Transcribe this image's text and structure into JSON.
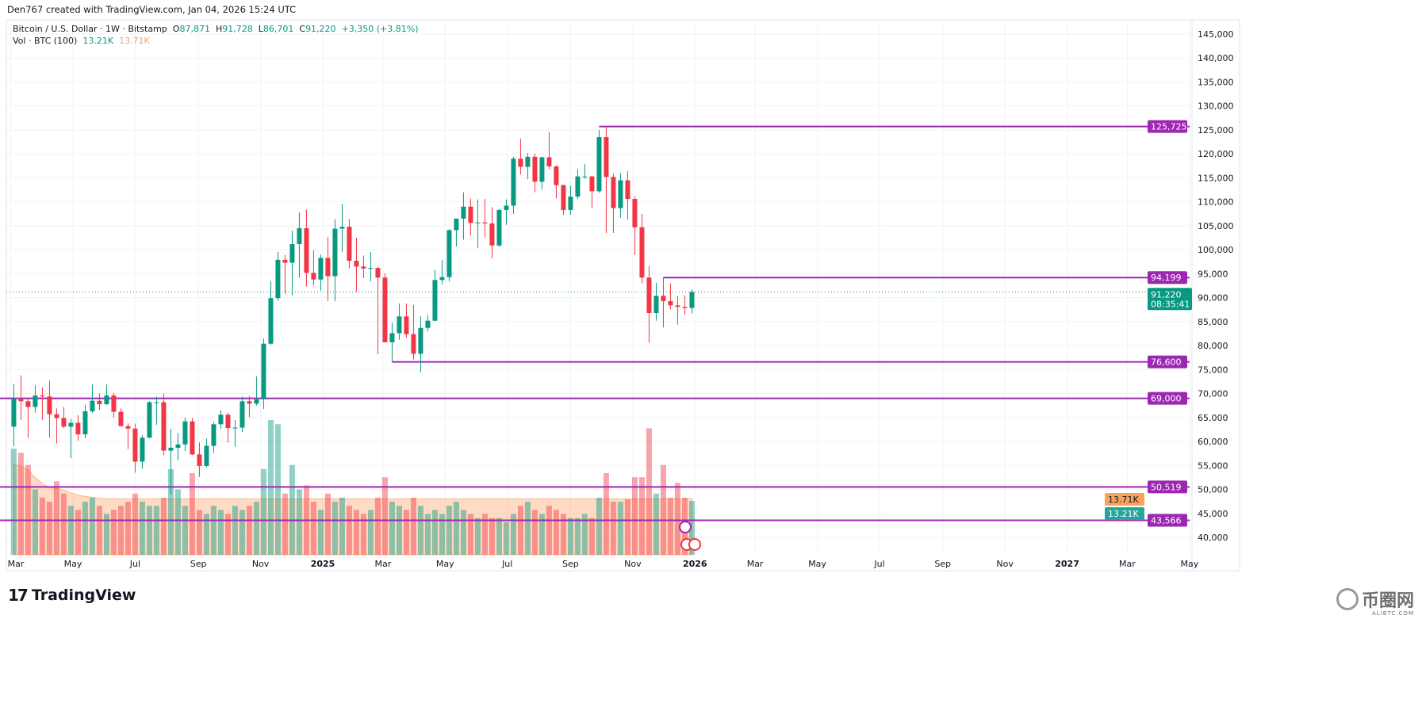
{
  "credit": "Den767 created with TradingView.com, Jan 04, 2026 15:24 UTC",
  "legend": {
    "symbol": "Bitcoin / U.S. Dollar · 1W · Bitstamp",
    "o_label": "O",
    "o": "87,871",
    "h_label": "H",
    "h": "91,728",
    "l_label": "L",
    "l": "86,701",
    "c_label": "C",
    "c": "91,220",
    "change": "+3,350 (+3.81%)",
    "vol_label": "Vol · BTC (100)",
    "vol": "13.21K",
    "vol_ma": "13.71K"
  },
  "colors": {
    "up": "#089981",
    "down": "#f23645",
    "level": "#9c27b0",
    "vol_ma": "#f7a35c",
    "grid": "#f0f3fa"
  },
  "footer": {
    "brand": "TradingView",
    "watermark": "币圈网",
    "watermark_sub": "ALIBTC.COM"
  },
  "chart_data": {
    "type": "candlestick",
    "title": "Bitcoin / U.S. Dollar · 1W · Bitstamp",
    "ylim": [
      38000,
      148000
    ],
    "y_ticks": [
      "40,000",
      "45,000",
      "50,000",
      "55,000",
      "60,000",
      "65,000",
      "70,000",
      "75,000",
      "80,000",
      "85,000",
      "90,000",
      "95,000",
      "100,000",
      "105,000",
      "110,000",
      "115,000",
      "120,000",
      "125,000",
      "130,000",
      "135,000",
      "140,000",
      "145,000"
    ],
    "x_ticks": [
      {
        "label": "Mar",
        "date": "2024-03-01"
      },
      {
        "label": "May",
        "date": "2024-05-01"
      },
      {
        "label": "Jul",
        "date": "2024-07-01"
      },
      {
        "label": "Sep",
        "date": "2024-09-01"
      },
      {
        "label": "Nov",
        "date": "2024-11-01"
      },
      {
        "label": "2025",
        "date": "2025-01-01",
        "bold": true
      },
      {
        "label": "Mar",
        "date": "2025-03-01"
      },
      {
        "label": "May",
        "date": "2025-05-01"
      },
      {
        "label": "Jul",
        "date": "2025-07-01"
      },
      {
        "label": "Sep",
        "date": "2025-09-01"
      },
      {
        "label": "Nov",
        "date": "2025-11-01"
      },
      {
        "label": "2026",
        "date": "2026-01-01",
        "bold": true
      },
      {
        "label": "Mar",
        "date": "2026-03-01"
      },
      {
        "label": "May",
        "date": "2026-05-01"
      },
      {
        "label": "Jul",
        "date": "2026-07-01"
      },
      {
        "label": "Sep",
        "date": "2026-09-01"
      },
      {
        "label": "Nov",
        "date": "2026-11-01"
      },
      {
        "label": "2027",
        "date": "2027-01-01",
        "bold": true
      },
      {
        "label": "Mar",
        "date": "2027-03-01"
      },
      {
        "label": "May",
        "date": "2027-05-01"
      }
    ],
    "levels": [
      {
        "label": "125,725",
        "price": 125725,
        "from": "2025-09-29"
      },
      {
        "label": "94,199",
        "price": 94199,
        "from": "2025-12-01"
      },
      {
        "label": "76,600",
        "price": 76600,
        "from": "2025-03-10"
      },
      {
        "label": "69,000",
        "price": 69000,
        "from": null
      },
      {
        "label": "50,519",
        "price": 50519,
        "from": null
      },
      {
        "label": "43,566",
        "price": 43566,
        "from": null
      }
    ],
    "last_price": {
      "label": "91,220",
      "price": 91220,
      "countdown": "08:35:41"
    },
    "volume_labels": {
      "ma": "13.71K",
      "last": "13.21K"
    },
    "columns": [
      "date",
      "open",
      "high",
      "low",
      "close",
      "volume_k"
    ],
    "candles": [
      [
        "2024-03-04",
        63100,
        72000,
        59000,
        69000,
        26
      ],
      [
        "2024-03-11",
        69000,
        73800,
        64500,
        68400,
        25
      ],
      [
        "2024-03-18",
        68400,
        68900,
        60800,
        67200,
        22
      ],
      [
        "2024-03-25",
        67200,
        71700,
        66000,
        69600,
        16
      ],
      [
        "2024-04-01",
        69600,
        71300,
        64500,
        69400,
        14
      ],
      [
        "2024-04-08",
        69400,
        72700,
        60800,
        65700,
        13
      ],
      [
        "2024-04-15",
        65700,
        66900,
        59600,
        64900,
        18
      ],
      [
        "2024-04-22",
        64900,
        67200,
        62800,
        63100,
        15
      ],
      [
        "2024-04-29",
        63100,
        64700,
        56500,
        63900,
        12
      ],
      [
        "2024-05-06",
        63900,
        65500,
        60200,
        61500,
        11
      ],
      [
        "2024-05-13",
        61500,
        67700,
        60700,
        66300,
        13
      ],
      [
        "2024-05-20",
        66300,
        71900,
        66000,
        68500,
        14
      ],
      [
        "2024-05-27",
        68500,
        70000,
        66600,
        67800,
        12
      ],
      [
        "2024-06-03",
        67800,
        71900,
        67600,
        69600,
        10
      ],
      [
        "2024-06-10",
        69600,
        70100,
        65000,
        66200,
        11
      ],
      [
        "2024-06-17",
        66200,
        66900,
        63400,
        63200,
        12
      ],
      [
        "2024-06-24",
        63200,
        63800,
        58400,
        62700,
        13
      ],
      [
        "2024-07-01",
        62700,
        63700,
        53500,
        55800,
        15
      ],
      [
        "2024-07-08",
        55800,
        61300,
        54300,
        60800,
        13
      ],
      [
        "2024-07-15",
        60800,
        68400,
        60700,
        68200,
        12
      ],
      [
        "2024-07-22",
        68200,
        69400,
        63500,
        68200,
        12
      ],
      [
        "2024-07-29",
        68200,
        70000,
        57100,
        58100,
        14
      ],
      [
        "2024-08-05",
        58100,
        62700,
        49000,
        58700,
        21
      ],
      [
        "2024-08-12",
        58700,
        61800,
        56100,
        59400,
        16
      ],
      [
        "2024-08-19",
        59400,
        65000,
        58000,
        64200,
        12
      ],
      [
        "2024-08-26",
        64200,
        64900,
        57200,
        57300,
        20
      ],
      [
        "2024-09-02",
        57300,
        59800,
        52600,
        54900,
        11
      ],
      [
        "2024-09-09",
        54900,
        60600,
        54600,
        59100,
        10
      ],
      [
        "2024-09-16",
        59100,
        64100,
        57600,
        63600,
        12
      ],
      [
        "2024-09-23",
        63600,
        66500,
        62700,
        65600,
        11
      ],
      [
        "2024-09-30",
        65600,
        66000,
        59800,
        62800,
        10
      ],
      [
        "2024-10-07",
        62800,
        64500,
        58900,
        62900,
        12
      ],
      [
        "2024-10-14",
        62900,
        69400,
        62000,
        68400,
        11
      ],
      [
        "2024-10-21",
        68400,
        69500,
        65100,
        67900,
        12
      ],
      [
        "2024-10-28",
        67900,
        73600,
        67500,
        68800,
        13
      ],
      [
        "2024-11-04",
        68800,
        81500,
        66800,
        80400,
        21
      ],
      [
        "2024-11-11",
        80400,
        93500,
        80200,
        89900,
        33
      ],
      [
        "2024-11-18",
        89900,
        99600,
        89400,
        97900,
        32
      ],
      [
        "2024-11-25",
        97900,
        98900,
        90800,
        97300,
        15
      ],
      [
        "2024-12-02",
        97300,
        104000,
        90500,
        101200,
        22
      ],
      [
        "2024-12-09",
        101200,
        107800,
        94200,
        104500,
        16
      ],
      [
        "2024-12-16",
        104500,
        108400,
        92300,
        95200,
        17
      ],
      [
        "2024-12-23",
        95200,
        99900,
        92500,
        93800,
        13
      ],
      [
        "2024-12-30",
        93800,
        99000,
        91500,
        98300,
        11
      ],
      [
        "2025-01-06",
        98300,
        102700,
        89300,
        94500,
        15
      ],
      [
        "2025-01-13",
        94500,
        106400,
        89300,
        104400,
        13
      ],
      [
        "2025-01-20",
        104400,
        109600,
        99500,
        104800,
        14
      ],
      [
        "2025-01-27",
        104800,
        106400,
        96100,
        97700,
        12
      ],
      [
        "2025-02-03",
        97700,
        102500,
        91200,
        96500,
        11
      ],
      [
        "2025-02-10",
        96500,
        98800,
        94100,
        96100,
        10
      ],
      [
        "2025-02-17",
        96100,
        99500,
        93400,
        96200,
        11
      ],
      [
        "2025-02-24",
        96200,
        96500,
        78200,
        94200,
        14
      ],
      [
        "2025-03-03",
        94200,
        95100,
        80900,
        80700,
        19
      ],
      [
        "2025-03-10",
        80700,
        84800,
        76600,
        82600,
        13
      ],
      [
        "2025-03-17",
        82600,
        88800,
        81200,
        86100,
        12
      ],
      [
        "2025-03-24",
        86100,
        88800,
        81600,
        82400,
        11
      ],
      [
        "2025-03-31",
        82400,
        88500,
        77100,
        78300,
        14
      ],
      [
        "2025-04-07",
        78300,
        86100,
        74400,
        83700,
        12
      ],
      [
        "2025-04-14",
        83700,
        86400,
        83000,
        85200,
        10
      ],
      [
        "2025-04-21",
        85200,
        95800,
        85100,
        93700,
        11
      ],
      [
        "2025-04-28",
        93700,
        97900,
        92800,
        94300,
        10
      ],
      [
        "2025-05-05",
        94300,
        104300,
        93400,
        104100,
        12
      ],
      [
        "2025-05-12",
        104100,
        105800,
        100700,
        106500,
        13
      ],
      [
        "2025-05-19",
        106500,
        112000,
        102100,
        109000,
        11
      ],
      [
        "2025-05-26",
        109000,
        110700,
        103000,
        105600,
        10
      ],
      [
        "2025-06-02",
        105600,
        110500,
        100400,
        105700,
        9
      ],
      [
        "2025-06-09",
        105700,
        110600,
        102600,
        105500,
        10
      ],
      [
        "2025-06-16",
        105500,
        108900,
        98200,
        100900,
        9
      ],
      [
        "2025-06-23",
        100900,
        108500,
        100600,
        108300,
        9
      ],
      [
        "2025-06-30",
        108300,
        110500,
        105200,
        109200,
        8
      ],
      [
        "2025-07-07",
        109200,
        119400,
        107500,
        119000,
        10
      ],
      [
        "2025-07-14",
        119000,
        123200,
        115700,
        117300,
        12
      ],
      [
        "2025-07-21",
        117300,
        120200,
        114700,
        119400,
        13
      ],
      [
        "2025-07-28",
        119400,
        120000,
        112000,
        114200,
        11
      ],
      [
        "2025-08-04",
        114200,
        119400,
        112600,
        119300,
        10
      ],
      [
        "2025-08-11",
        119300,
        124500,
        116800,
        117400,
        12
      ],
      [
        "2025-08-18",
        117400,
        117600,
        110700,
        113500,
        11
      ],
      [
        "2025-08-25",
        113500,
        113600,
        107300,
        108300,
        10
      ],
      [
        "2025-09-01",
        108300,
        113400,
        107300,
        111100,
        9
      ],
      [
        "2025-09-08",
        111100,
        116800,
        110600,
        115300,
        9
      ],
      [
        "2025-09-15",
        115300,
        117900,
        114800,
        115300,
        10
      ],
      [
        "2025-09-22",
        115300,
        115400,
        108600,
        112200,
        9
      ],
      [
        "2025-09-29",
        112200,
        125000,
        111900,
        123500,
        14
      ],
      [
        "2025-10-06",
        123500,
        125725,
        103500,
        115200,
        20
      ],
      [
        "2025-10-13",
        115200,
        115900,
        103500,
        108700,
        13
      ],
      [
        "2025-10-20",
        108700,
        116000,
        106700,
        114500,
        13
      ],
      [
        "2025-10-27",
        114500,
        116400,
        106300,
        110600,
        13.6
      ],
      [
        "2025-11-03",
        110600,
        111200,
        98900,
        104700,
        19
      ],
      [
        "2025-11-10",
        104700,
        107500,
        93000,
        94200,
        19
      ],
      [
        "2025-11-17",
        94200,
        96600,
        80600,
        86800,
        31
      ],
      [
        "2025-11-24",
        86800,
        93100,
        85200,
        90400,
        15
      ],
      [
        "2025-12-01",
        90400,
        94199,
        83800,
        89300,
        22
      ],
      [
        "2025-12-08",
        89300,
        93000,
        87600,
        88400,
        14
      ],
      [
        "2025-12-15",
        88400,
        90400,
        84400,
        88100,
        17.6
      ],
      [
        "2025-12-22",
        88100,
        90500,
        86500,
        87871,
        14
      ],
      [
        "2025-12-29",
        87871,
        91728,
        86701,
        91220,
        13.21
      ]
    ]
  }
}
